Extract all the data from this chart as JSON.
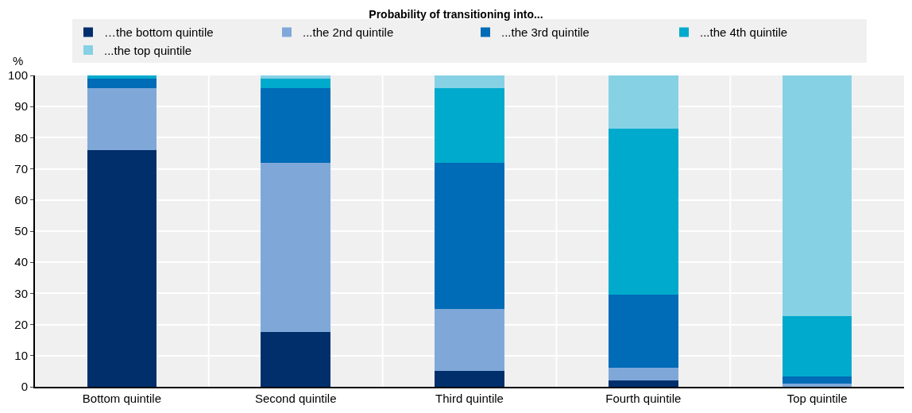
{
  "chart_data": {
    "type": "bar",
    "stacked": true,
    "title": "Probability of transitioning into...",
    "ylabel": "%",
    "categories": [
      "Bottom quintile",
      "Second quintile",
      "Third quintile",
      "Fourth quintile",
      "Top quintile"
    ],
    "series": [
      {
        "name": "…the bottom quintile",
        "color": "#002f6c",
        "values": [
          76,
          17.5,
          5,
          2,
          null
        ]
      },
      {
        "name": "...the 2nd quintile",
        "color": "#7fa8d9",
        "values": [
          20,
          54.5,
          20,
          4,
          1.1
        ]
      },
      {
        "name": "...the 3rd quintile",
        "color": "#006bb6",
        "values": [
          3,
          24,
          47,
          23.5,
          2.2
        ]
      },
      {
        "name": "...the 4th quintile",
        "color": "#00aacc",
        "values": [
          1,
          3,
          24,
          53.5,
          19.4
        ]
      },
      {
        "name": "...the top quintile",
        "color": "#86d1e4",
        "values": [
          0,
          1,
          4,
          17,
          77.3
        ]
      }
    ],
    "ylim": [
      0,
      100
    ],
    "yticks": [
      0,
      10,
      20,
      30,
      40,
      50,
      60,
      70,
      80,
      90,
      100
    ],
    "grid": true,
    "legend": "top"
  }
}
